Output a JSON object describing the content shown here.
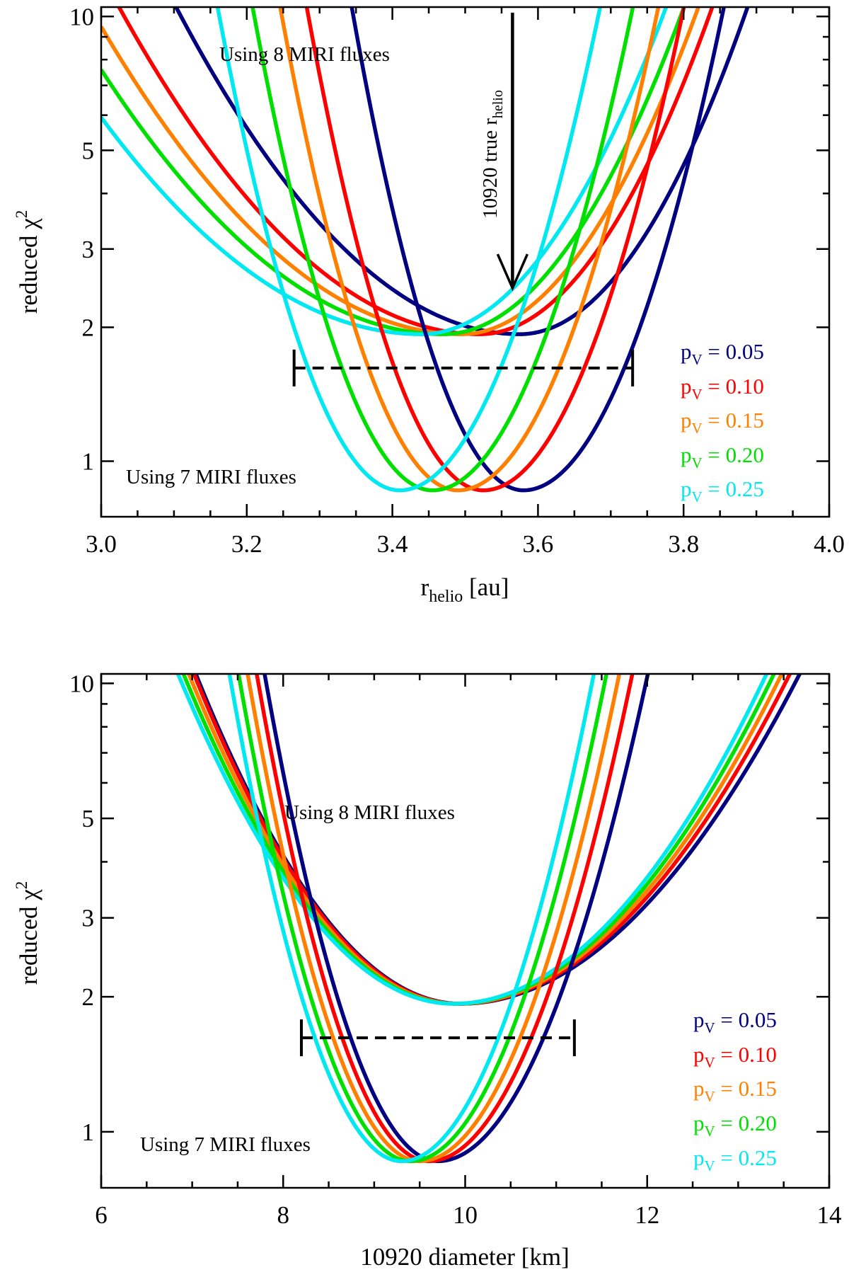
{
  "chart_data": [
    {
      "type": "line",
      "id": "top",
      "xlabel": "r",
      "xlabel_sub": "helio",
      "xlabel_unit": " [au]",
      "ylabel": "reduced χ",
      "ylabel_sup": "2",
      "yscale": "log",
      "xlim": [
        3.0,
        4.0
      ],
      "ylim": [
        0.75,
        10.5
      ],
      "xticks": [
        3.0,
        3.2,
        3.4,
        3.6,
        3.8,
        4.0
      ],
      "xtick_labels": [
        "3.0",
        "3.2",
        "3.4",
        "3.6",
        "3.8",
        "4.0"
      ],
      "yticks": [
        1,
        2,
        3,
        5,
        10
      ],
      "ytick_labels": [
        "1",
        "2",
        "3",
        "5",
        "10"
      ],
      "annotations": {
        "eight": "Using 8 MIRI fluxes",
        "seven": "Using 7 MIRI fluxes",
        "arrow_main": "10920 true r",
        "arrow_sub": "helio",
        "arrow_x": 3.565,
        "arrow_y_top": 10.2,
        "arrow_y_tip": 2.45
      },
      "errorbar": {
        "x_low": 3.265,
        "x_high": 3.73,
        "y": 1.62
      },
      "series": [
        {
          "name": "p_V = 0.05",
          "color": "#000080",
          "set8": {
            "xmin": 3.575,
            "ymin": 1.93,
            "a": 7.6,
            "b": 17.3
          },
          "set7": {
            "xmin": 3.58,
            "ymin": 0.86,
            "a": 45.0,
            "b": 33.0
          }
        },
        {
          "name": "p_V = 0.10",
          "color": "#ff0000",
          "set8": {
            "xmin": 3.52,
            "ymin": 1.93,
            "a": 6.9,
            "b": 16.6
          },
          "set7": {
            "xmin": 3.525,
            "ymin": 0.86,
            "a": 42.5,
            "b": 33.0
          }
        },
        {
          "name": "p_V = 0.15",
          "color": "#ff8000",
          "set8": {
            "xmin": 3.495,
            "ymin": 1.93,
            "a": 6.5,
            "b": 16.0
          },
          "set7": {
            "xmin": 3.49,
            "ymin": 0.86,
            "a": 42.0,
            "b": 33.0
          }
        },
        {
          "name": "p_V = 0.20",
          "color": "#00e000",
          "set8": {
            "xmin": 3.47,
            "ymin": 1.93,
            "a": 6.2,
            "b": 15.5
          },
          "set7": {
            "xmin": 3.455,
            "ymin": 0.86,
            "a": 41.0,
            "b": 33.0
          }
        },
        {
          "name": "p_V = 0.25",
          "color": "#00e8f0",
          "set8": {
            "xmin": 3.44,
            "ymin": 1.93,
            "a": 5.8,
            "b": 15.0
          },
          "set7": {
            "xmin": 3.41,
            "ymin": 0.86,
            "a": 40.0,
            "b": 33.0
          }
        }
      ]
    },
    {
      "type": "line",
      "id": "bottom",
      "xlabel": "10920 diameter [km]",
      "ylabel": "reduced χ",
      "ylabel_sup": "2",
      "yscale": "log",
      "xlim": [
        6,
        14
      ],
      "ylim": [
        0.75,
        10.5
      ],
      "xticks": [
        6,
        8,
        10,
        12,
        14
      ],
      "xtick_labels": [
        "6",
        "8",
        "10",
        "12",
        "14"
      ],
      "yticks": [
        1,
        2,
        3,
        5,
        10
      ],
      "ytick_labels": [
        "1",
        "2",
        "3",
        "5",
        "10"
      ],
      "annotations": {
        "eight": "Using 8 MIRI fluxes",
        "seven": "Using 7 MIRI fluxes"
      },
      "errorbar": {
        "x_low": 8.2,
        "x_high": 11.2,
        "y": 1.62
      },
      "series": [
        {
          "name": "p_V = 0.05",
          "color": "#000080",
          "set8": {
            "xmin": 9.95,
            "ymin": 1.93,
            "a": 0.2,
            "b": 0.122
          },
          "set7": {
            "xmin": 9.7,
            "ymin": 0.86,
            "a": 0.69,
            "b": 0.47
          }
        },
        {
          "name": "p_V = 0.10",
          "color": "#ff0000",
          "set8": {
            "xmin": 9.93,
            "ymin": 1.93,
            "a": 0.2,
            "b": 0.128
          },
          "set7": {
            "xmin": 9.6,
            "ymin": 0.86,
            "a": 0.7,
            "b": 0.5
          }
        },
        {
          "name": "p_V = 0.15",
          "color": "#ff8000",
          "set8": {
            "xmin": 9.91,
            "ymin": 1.93,
            "a": 0.195,
            "b": 0.133
          },
          "set7": {
            "xmin": 9.5,
            "ymin": 0.86,
            "a": 0.7,
            "b": 0.52
          }
        },
        {
          "name": "p_V = 0.20",
          "color": "#00e000",
          "set8": {
            "xmin": 9.89,
            "ymin": 1.93,
            "a": 0.19,
            "b": 0.138
          },
          "set7": {
            "xmin": 9.4,
            "ymin": 0.86,
            "a": 0.7,
            "b": 0.54
          }
        },
        {
          "name": "p_V = 0.25",
          "color": "#00e8f0",
          "set8": {
            "xmin": 9.87,
            "ymin": 1.93,
            "a": 0.185,
            "b": 0.143
          },
          "set7": {
            "xmin": 9.3,
            "ymin": 0.86,
            "a": 0.7,
            "b": 0.56
          }
        }
      ]
    }
  ],
  "legend": {
    "prefix": "p",
    "sub": "V",
    "entries": [
      {
        "value": " = 0.05",
        "color": "#000080"
      },
      {
        "value": " = 0.10",
        "color": "#ff0000"
      },
      {
        "value": " = 0.15",
        "color": "#ff8000"
      },
      {
        "value": " = 0.20",
        "color": "#00e000"
      },
      {
        "value": " = 0.25",
        "color": "#00e8f0"
      }
    ]
  }
}
